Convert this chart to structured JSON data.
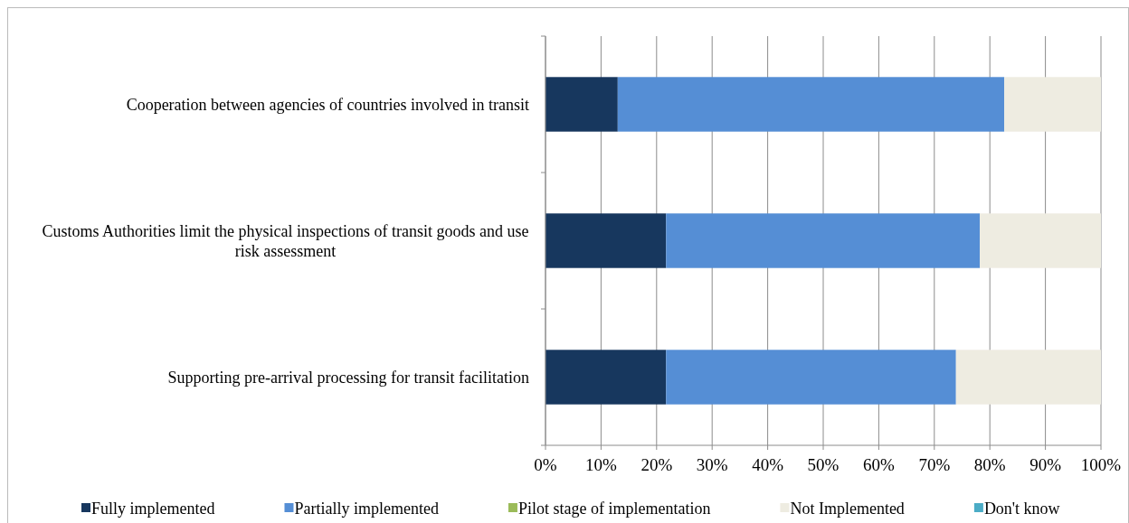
{
  "chart_data": {
    "type": "bar",
    "orientation": "horizontal",
    "stacked": true,
    "categories": [
      "Cooperation between agencies of countries involved in transit",
      "Customs Authorities limit the physical inspections of transit goods and use risk assessment",
      "Supporting pre-arrival processing for transit facilitation"
    ],
    "series": [
      {
        "name": "Fully implemented",
        "color": "#17375e",
        "values": [
          13.0,
          21.7,
          21.7
        ]
      },
      {
        "name": "Partially implemented",
        "color": "#558ed5",
        "values": [
          69.6,
          56.5,
          52.2
        ]
      },
      {
        "name": "Pilot stage of implementation",
        "color": "#9bbb59",
        "values": [
          0,
          0,
          0
        ]
      },
      {
        "name": "Not Implemented",
        "color": "#eeece1",
        "values": [
          17.4,
          21.8,
          26.1
        ]
      },
      {
        "name": "Don't know",
        "color": "#4bacc6",
        "values": [
          0,
          0,
          0
        ]
      }
    ],
    "xlim": [
      0,
      100
    ],
    "xticks": [
      {
        "value": 0,
        "label": "0%"
      },
      {
        "value": 10,
        "label": "10%"
      },
      {
        "value": 20,
        "label": "20%"
      },
      {
        "value": 30,
        "label": "30%"
      },
      {
        "value": 40,
        "label": "40%"
      },
      {
        "value": 50,
        "label": "50%"
      },
      {
        "value": 60,
        "label": "60%"
      },
      {
        "value": 70,
        "label": "70%"
      },
      {
        "value": 80,
        "label": "80%"
      },
      {
        "value": 90,
        "label": "90%"
      },
      {
        "value": 100,
        "label": "100%"
      }
    ],
    "grid": "x",
    "legend": "bottom"
  }
}
